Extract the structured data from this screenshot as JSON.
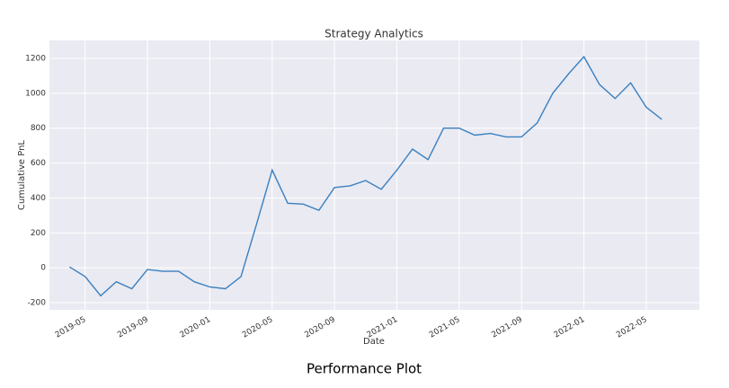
{
  "chart_data": {
    "type": "line",
    "title": "Strategy Analytics",
    "x_label": "Date",
    "y_label": "Cumulative PnL",
    "caption": "Performance Plot",
    "x": [
      "2019-04",
      "2019-05",
      "2019-06",
      "2019-07",
      "2019-08",
      "2019-09",
      "2019-10",
      "2019-11",
      "2019-12",
      "2020-01",
      "2020-02",
      "2020-03",
      "2020-04",
      "2020-05",
      "2020-06",
      "2020-07",
      "2020-08",
      "2020-09",
      "2020-10",
      "2020-11",
      "2020-12",
      "2021-01",
      "2021-02",
      "2021-03",
      "2021-04",
      "2021-05",
      "2021-06",
      "2021-07",
      "2021-08",
      "2021-09",
      "2021-10",
      "2021-11",
      "2021-12",
      "2022-01",
      "2022-02",
      "2022-03",
      "2022-04",
      "2022-05",
      "2022-06"
    ],
    "series": [
      {
        "name": "Cumulative PnL",
        "color": "#3a80c0",
        "values": [
          5,
          -50,
          -160,
          -80,
          -120,
          -10,
          -20,
          -20,
          -80,
          -110,
          -120,
          -50,
          250,
          560,
          370,
          365,
          330,
          460,
          470,
          500,
          450,
          560,
          680,
          620,
          800,
          800,
          760,
          770,
          750,
          750,
          830,
          1000,
          1110,
          1210,
          1050,
          970,
          1060,
          920,
          850
        ]
      }
    ],
    "xlim": [
      "2019-03",
      "2022-08"
    ],
    "xticks": [
      "2019-05",
      "2019-09",
      "2020-01",
      "2020-05",
      "2020-09",
      "2021-01",
      "2021-05",
      "2021-09",
      "2022-01",
      "2022-05"
    ],
    "ylim": [
      -241,
      1303
    ],
    "yticks": [
      -200,
      0,
      200,
      400,
      600,
      800,
      1000,
      1200
    ],
    "grid": true
  }
}
